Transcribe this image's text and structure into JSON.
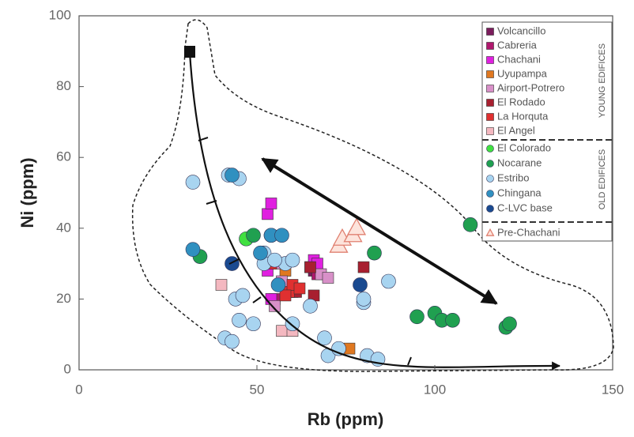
{
  "chart_data": {
    "type": "scatter",
    "x_label": "Rb (ppm)",
    "y_label": "Ni (ppm)",
    "xlim": [
      0,
      150
    ],
    "ylim": [
      0,
      100
    ],
    "xticks": [
      0,
      50,
      100,
      150
    ],
    "yticks": [
      0,
      20,
      40,
      60,
      80,
      100
    ],
    "legend_groups": [
      "YOUNG EDIFICES",
      "OLD EDIFICES"
    ],
    "series": [
      {
        "name": "Volcancillo",
        "color": "#7b1c5c",
        "marker": "square",
        "x": [
          65,
          66
        ],
        "values": [
          29,
          28
        ]
      },
      {
        "name": "Cabreria",
        "color": "#b0186e",
        "marker": "square",
        "x": [
          55,
          67
        ],
        "values": [
          20,
          27
        ]
      },
      {
        "name": "Chachani",
        "color": "#e020e0",
        "marker": "square",
        "x": [
          53,
          54,
          53,
          66,
          67,
          54
        ],
        "values": [
          44,
          47,
          28,
          31,
          30,
          20
        ]
      },
      {
        "name": "Uyupampa",
        "color": "#e07820",
        "marker": "square",
        "x": [
          58,
          76
        ],
        "values": [
          28,
          6
        ]
      },
      {
        "name": "Airport-Potrero",
        "color": "#d890c8",
        "marker": "square",
        "x": [
          56,
          57,
          68,
          70,
          55,
          60
        ],
        "values": [
          30,
          25,
          27,
          26,
          18,
          22
        ]
      },
      {
        "name": "El Rodado",
        "color": "#a82030",
        "marker": "square",
        "x": [
          65,
          80,
          61,
          66
        ],
        "values": [
          29,
          29,
          22,
          21
        ]
      },
      {
        "name": "La Horquta",
        "color": "#e03030",
        "marker": "square",
        "x": [
          54,
          59,
          60,
          62,
          58
        ],
        "values": [
          30,
          22,
          24,
          23,
          21
        ]
      },
      {
        "name": "El Angel",
        "color": "#f4b8c0",
        "marker": "square",
        "x": [
          40,
          57,
          60
        ],
        "values": [
          24,
          11,
          11
        ]
      },
      {
        "name": "El Colorado",
        "color": "#40e040",
        "marker": "circle",
        "x": [
          47
        ],
        "values": [
          37
        ]
      },
      {
        "name": "Nocarane",
        "color": "#20a050",
        "marker": "circle",
        "x": [
          34,
          49,
          83,
          95,
          100,
          102,
          105,
          110,
          120,
          121
        ],
        "values": [
          32,
          38,
          33,
          15,
          16,
          14,
          14,
          41,
          12,
          13
        ]
      },
      {
        "name": "Estribo",
        "color": "#a8d4f0",
        "marker": "circle",
        "x": [
          32,
          42,
          45,
          44,
          46,
          45,
          49,
          41,
          43,
          52,
          54,
          58,
          60,
          60,
          65,
          69,
          70,
          73,
          80,
          80,
          81,
          84,
          87,
          52,
          55
        ],
        "values": [
          53,
          55,
          54,
          20,
          21,
          14,
          13,
          9,
          8,
          33,
          38,
          30,
          13,
          31,
          18,
          9,
          4,
          6,
          19,
          20,
          4,
          3,
          25,
          30,
          31
        ]
      },
      {
        "name": "Chingana",
        "color": "#3090c0",
        "marker": "circle",
        "x": [
          32,
          43,
          51,
          54,
          57,
          56
        ],
        "values": [
          34,
          55,
          33,
          38,
          38,
          24
        ]
      },
      {
        "name": "C-LVC base",
        "color": "#1a4a90",
        "marker": "circle",
        "x": [
          79,
          43
        ],
        "values": [
          24,
          30
        ]
      },
      {
        "name": "Pre-Chachani",
        "color": "#e08070",
        "marker": "triangle",
        "x": [
          73,
          74,
          77,
          78
        ],
        "values": [
          35,
          37,
          38,
          40
        ]
      }
    ]
  }
}
